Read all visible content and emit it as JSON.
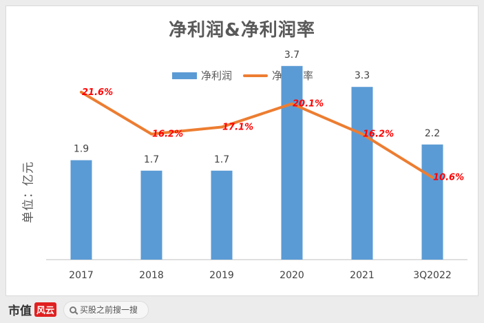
{
  "chart_data": {
    "type": "bar+line",
    "title": "净利润&净利润率",
    "ylabel": "单位：亿元",
    "categories": [
      "2017",
      "2018",
      "2019",
      "2020",
      "2021",
      "3Q2022"
    ],
    "series": [
      {
        "name": "净利润",
        "type": "bar",
        "color": "#5b9bd5",
        "values": [
          1.9,
          1.7,
          1.7,
          3.7,
          3.3,
          2.2
        ],
        "labels": [
          "1.9",
          "1.7",
          "1.7",
          "3.7",
          "3.3",
          "2.2"
        ]
      },
      {
        "name": "净利润率",
        "type": "line",
        "color": "#ed7d31",
        "values": [
          21.6,
          16.2,
          17.1,
          20.1,
          16.2,
          10.6
        ],
        "labels": [
          "21.6%",
          "16.2%",
          "17.1%",
          "20.1%",
          "16.2%",
          "10.6%"
        ],
        "label_color": "#ff0000"
      }
    ],
    "ylim_bars": [
      0,
      4
    ],
    "ylim_line": [
      0,
      27
    ],
    "grid": false,
    "legend_position": "top"
  },
  "footer": {
    "brand_name": "市值",
    "brand_mark": "风云",
    "search_placeholder": "买股之前搜一搜",
    "search_icon": "search-icon"
  }
}
